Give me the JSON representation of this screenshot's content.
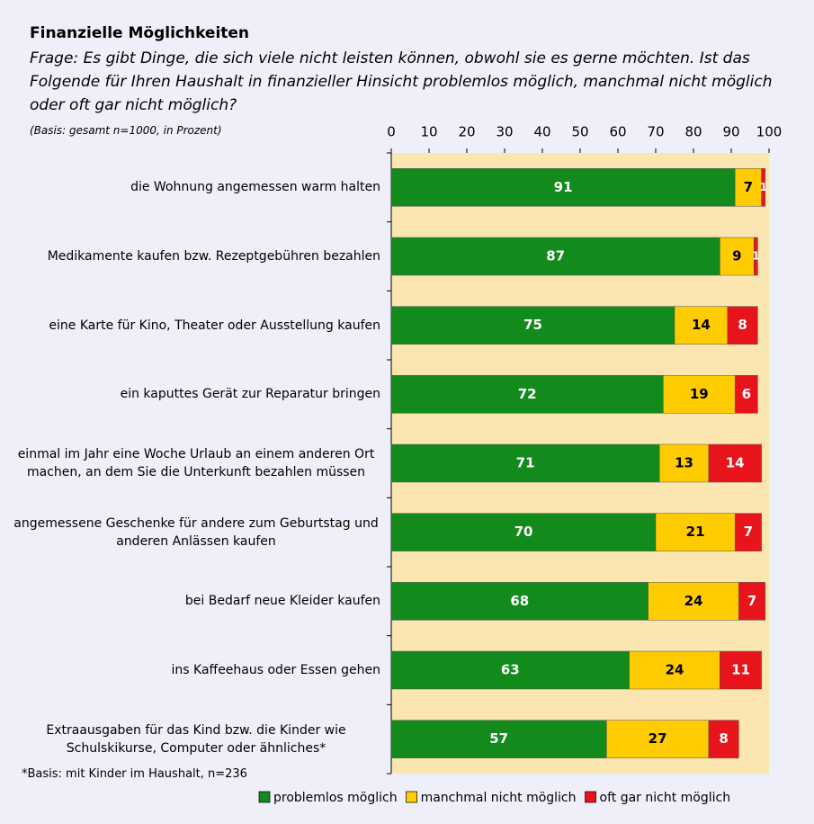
{
  "chart_data": {
    "type": "stacked_barh",
    "title": "Finanzielle Möglichkeiten",
    "subtitle": "Frage: Es gibt Dinge, die sich viele nicht leisten können, obwohl sie es gerne möchten. Ist das Folgende für Ihren Haushalt in finanzieller Hinsicht problemlos möglich, manchmal nicht möglich oder oft gar nicht möglich?",
    "note": "(Basis: gesamt n=1000, in Prozent)",
    "footnote": "*Basis: mit Kinder im Haushalt, n=236",
    "categories": [
      "die Wohnung angemessen warm halten",
      "Medikamente kaufen bzw. Rezeptgebühren bezahlen",
      "eine Karte für Kino, Theater oder Ausstellung kaufen",
      "ein kaputtes Gerät zur Reparatur bringen",
      "einmal im Jahr eine Woche Urlaub an einem anderen Ort machen, an dem Sie die Unterkunft bezahlen müssen",
      "angemessene Geschenke für andere zum Geburtstag und anderen Anlässen kaufen",
      "bei Bedarf neue Kleider kaufen",
      "ins Kaffeehaus oder Essen gehen",
      "Extraausgaben für das Kind bzw. die Kinder wie Schulskikurse, Computer oder ähnliches*"
    ],
    "series": [
      {
        "name": "problemlos möglich",
        "color": "#128a1c",
        "values": [
          91,
          87,
          75,
          72,
          71,
          70,
          68,
          63,
          57
        ]
      },
      {
        "name": "manchmal nicht möglich",
        "color": "#ffcc00",
        "values": [
          7,
          9,
          14,
          19,
          13,
          21,
          24,
          24,
          27
        ]
      },
      {
        "name": "oft gar nicht möglich",
        "color": "#e8141c",
        "values": [
          1,
          1,
          8,
          6,
          14,
          7,
          7,
          11,
          8
        ]
      }
    ],
    "xlim": [
      0,
      100
    ],
    "xticks": [
      0,
      10,
      20,
      30,
      40,
      50,
      60,
      70,
      80,
      90,
      100
    ],
    "legend": "bottom"
  }
}
